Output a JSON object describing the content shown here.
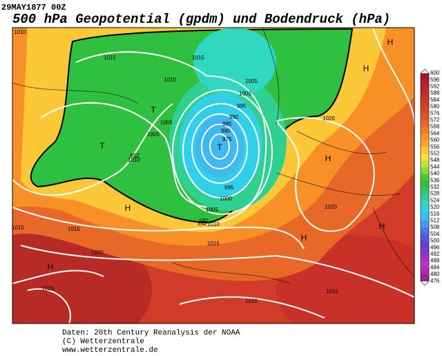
{
  "header": {
    "date": "29MAY1877 00Z",
    "title": "500 hPa Geopotential (gpdm) und Bodendruck (hPa)"
  },
  "map": {
    "isobar_labels": [
      1010,
      1015,
      1015,
      1010,
      1005,
      1005,
      1010,
      1005,
      1000,
      995,
      990,
      985,
      980,
      975,
      995,
      1000,
      1005,
      1010,
      1015,
      1015,
      1020,
      1020,
      1020,
      1025,
      1015,
      1010,
      1015
    ],
    "contour_labels": [
      552,
      552,
      560
    ],
    "pressure_centers": [
      "T",
      "T",
      "T",
      "H",
      "H",
      "H",
      "H",
      "H",
      "H",
      "H"
    ]
  },
  "colorbar": {
    "levels": [
      600,
      596,
      592,
      588,
      584,
      580,
      576,
      572,
      568,
      564,
      560,
      556,
      552,
      548,
      544,
      540,
      536,
      532,
      528,
      524,
      520,
      516,
      512,
      508,
      504,
      500,
      496,
      492,
      488,
      484,
      480,
      476
    ],
    "colors": [
      "#a01c28",
      "#b4202a",
      "#c0282a",
      "#c83028",
      "#d03c28",
      "#d84828",
      "#e05828",
      "#e86828",
      "#f07828",
      "#f89028",
      "#fca830",
      "#fcc838",
      "#f8e040",
      "#c8e040",
      "#90d838",
      "#50c830",
      "#30c040",
      "#30c860",
      "#30d090",
      "#30d8c0",
      "#30d0e8",
      "#40b8f0",
      "#4898f0",
      "#4878e8",
      "#5058e0",
      "#6040d8",
      "#8038d0",
      "#a030c8",
      "#c030c0",
      "#b028b0",
      "#902898"
    ]
  },
  "footer": {
    "lines": [
      "Daten: 20th Century Reanalysis der NOAA",
      "(C) Wetterzentrale",
      "www.wetterzentrale.de"
    ]
  }
}
